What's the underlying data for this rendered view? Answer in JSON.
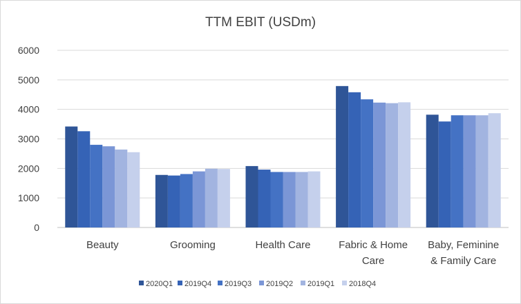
{
  "chart_data": {
    "type": "bar",
    "title": "TTM EBIT (USDm)",
    "xlabel": "",
    "ylabel": "",
    "ylim": [
      0,
      6000
    ],
    "yticks": [
      0,
      1000,
      2000,
      3000,
      4000,
      5000,
      6000
    ],
    "grid": true,
    "legend_position": "bottom",
    "categories": [
      [
        "Beauty"
      ],
      [
        "Grooming"
      ],
      [
        "Health Care"
      ],
      [
        "Fabric & Home",
        "Care"
      ],
      [
        "Baby, Feminine",
        "& Family Care"
      ]
    ],
    "series": [
      {
        "name": "2020Q1",
        "color": "#2f5597",
        "values": [
          3420,
          1780,
          2080,
          4790,
          3820
        ]
      },
      {
        "name": "2019Q4",
        "color": "#3563b6",
        "values": [
          3260,
          1760,
          1960,
          4580,
          3590
        ]
      },
      {
        "name": "2019Q3",
        "color": "#4472c4",
        "values": [
          2800,
          1810,
          1880,
          4340,
          3800
        ]
      },
      {
        "name": "2019Q2",
        "color": "#7b96d6",
        "values": [
          2750,
          1900,
          1880,
          4230,
          3800
        ]
      },
      {
        "name": "2019Q1",
        "color": "#a2b4e0",
        "values": [
          2640,
          1990,
          1880,
          4210,
          3800
        ]
      },
      {
        "name": "2018Q4",
        "color": "#c5d0ec",
        "values": [
          2550,
          1980,
          1900,
          4240,
          3870
        ]
      }
    ]
  }
}
